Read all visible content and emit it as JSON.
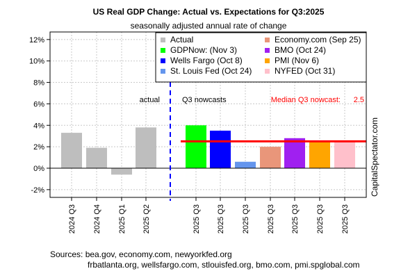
{
  "chart_data": {
    "type": "bar",
    "title": "US Real GDP Change: Actual vs. Expectations for Q3:2025",
    "subtitle": "seasonally adjusted annual rate of change",
    "categories": [
      "2024 Q3",
      "2024 Q4",
      "2025 Q1",
      "2025 Q2",
      "2025 Q3",
      "2025 Q3",
      "2025 Q3",
      "2025 Q3",
      "2025 Q3",
      "2025 Q3",
      "2025 Q3"
    ],
    "values": [
      3.3,
      1.9,
      -0.6,
      3.8,
      4.0,
      3.5,
      0.6,
      2.0,
      2.8,
      2.5,
      2.5
    ],
    "colors": [
      "#bebebe",
      "#bebebe",
      "#bebebe",
      "#bebebe",
      "#00ff00",
      "#0000ff",
      "#6495ed",
      "#e9967a",
      "#a020f0",
      "#ffa500",
      "#ffc0cb"
    ],
    "ylim": [
      -3,
      13
    ],
    "yticks": [
      -2,
      0,
      2,
      4,
      6,
      8,
      10,
      12
    ],
    "ytick_labels": [
      "-2%",
      "0%",
      "2%",
      "4%",
      "6%",
      "8%",
      "10%",
      "12%"
    ],
    "grid": true,
    "legend_placement": "top-right",
    "legend": [
      {
        "label": "Actual",
        "color": "#bebebe"
      },
      {
        "label": "GDPNow: (Nov 3)",
        "color": "#00ff00"
      },
      {
        "label": "Wells Fargo (Oct 8)",
        "color": "#0000ff"
      },
      {
        "label": "St. Louis Fed (Oct 24)",
        "color": "#6495ed"
      },
      {
        "label": "Economy.com (Sep 25)",
        "color": "#e9967a"
      },
      {
        "label": "BMO (Oct 24)",
        "color": "#a020f0"
      },
      {
        "label": "PMI (Nov 6)",
        "color": "#ffa500"
      },
      {
        "label": "NYFED (Oct 31)",
        "color": "#ffc0cb"
      }
    ],
    "median": 2.5,
    "median_color": "#ff0000",
    "annotations": {
      "actual": "actual",
      "nowcasts": "Q3 nowcasts",
      "median_label": "Median Q3 nowcast:",
      "median_value": "2.5"
    },
    "watermark": "CapitalSpectator.com"
  },
  "sources": {
    "line1": "Sources: bea.gov, economy.com, newyorkfed.org",
    "line2": "frbatlanta.org, wellsfargo.com, stlouisfed.org, bmo.com, pmi.spglobal.com"
  }
}
